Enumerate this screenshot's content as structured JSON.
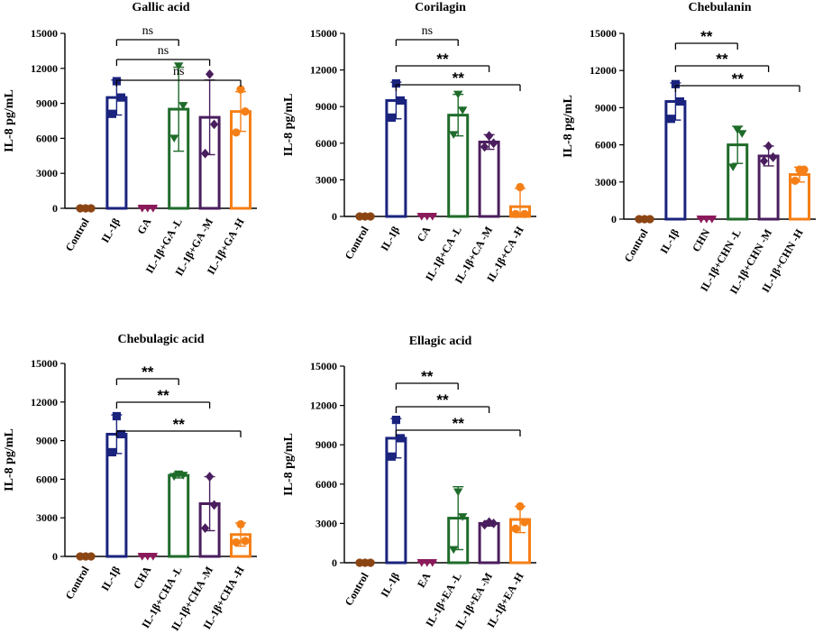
{
  "y_axis_label": "IL-8 pg/mL",
  "colors": [
    "#8B4513",
    "#1A237E",
    "#8B1A5A",
    "#1E6B2A",
    "#4A1E5E",
    "#F57F17"
  ],
  "chart_data": [
    {
      "type": "bar",
      "title": "Gallic acid",
      "categories": [
        "Control",
        "IL-1β",
        "GA",
        "IL-1β+GA -L",
        "IL-1β+GA -M",
        "IL-1β+GA -H"
      ],
      "values": [
        0,
        9500,
        0,
        8500,
        7800,
        8300
      ],
      "errors": [
        0,
        1500,
        0,
        3600,
        3200,
        1700
      ],
      "points": [
        [
          0,
          0,
          0
        ],
        [
          8100,
          9500,
          10900
        ],
        [
          0,
          0,
          0
        ],
        [
          6000,
          8800,
          12200
        ],
        [
          4700,
          7200,
          11500
        ],
        [
          6500,
          8300,
          10200
        ]
      ],
      "yticks": [
        0,
        3000,
        6000,
        9000,
        12000,
        15000
      ],
      "ylim": [
        0,
        15000
      ],
      "brackets": [
        {
          "from": 1,
          "to": 3,
          "label": "ns"
        },
        {
          "from": 1,
          "to": 4,
          "label": "ns"
        },
        {
          "from": 1,
          "to": 5,
          "label": "ns"
        }
      ]
    },
    {
      "type": "bar",
      "title": "Corilagin",
      "categories": [
        "Control",
        "IL-1β",
        "CA",
        "IL-1β+CA -L",
        "IL-1β+CA -M",
        "IL-1β+CA -H"
      ],
      "values": [
        0,
        9500,
        0,
        8300,
        6100,
        800
      ],
      "errors": [
        0,
        1500,
        0,
        1700,
        600,
        1500
      ],
      "points": [
        [
          0,
          0,
          0
        ],
        [
          8100,
          9500,
          10900
        ],
        [
          0,
          0,
          0
        ],
        [
          6700,
          8700,
          10000
        ],
        [
          5700,
          6000,
          6600
        ],
        [
          200,
          200,
          2400
        ]
      ],
      "yticks": [
        0,
        3000,
        6000,
        9000,
        12000,
        15000
      ],
      "ylim": [
        0,
        15000
      ],
      "brackets": [
        {
          "from": 1,
          "to": 3,
          "label": "ns"
        },
        {
          "from": 1,
          "to": 4,
          "label": "**"
        },
        {
          "from": 1,
          "to": 5,
          "label": "**"
        }
      ]
    },
    {
      "type": "bar",
      "title": "Chebulanin",
      "categories": [
        "Control",
        "IL-1β",
        "CHN",
        "IL-1β+CHN -L",
        "IL-1β+CHN -M",
        "IL-1β+CHN -H"
      ],
      "values": [
        0,
        9500,
        0,
        6000,
        5100,
        3600
      ],
      "errors": [
        0,
        1500,
        0,
        1500,
        800,
        600
      ],
      "points": [
        [
          0,
          0,
          0
        ],
        [
          8100,
          9500,
          10900
        ],
        [
          0,
          0,
          0
        ],
        [
          4200,
          6900,
          7200
        ],
        [
          4700,
          5000,
          5900
        ],
        [
          3100,
          4000,
          4000
        ]
      ],
      "yticks": [
        0,
        3000,
        6000,
        9000,
        12000,
        15000
      ],
      "ylim": [
        0,
        15000
      ],
      "brackets": [
        {
          "from": 1,
          "to": 3,
          "label": "**"
        },
        {
          "from": 1,
          "to": 4,
          "label": "**"
        },
        {
          "from": 1,
          "to": 5,
          "label": "**"
        }
      ]
    },
    {
      "type": "bar",
      "title": "Chebulagic acid",
      "categories": [
        "Control",
        "IL-1β",
        "CHA",
        "IL-1β+CHA -L",
        "IL-1β+CHA -M",
        "IL-1β+CHA -H"
      ],
      "values": [
        0,
        9500,
        0,
        6300,
        4100,
        1700
      ],
      "errors": [
        0,
        1500,
        0,
        200,
        2100,
        900
      ],
      "points": [
        [
          0,
          0,
          0
        ],
        [
          8100,
          9500,
          10900
        ],
        [
          0,
          0,
          0
        ],
        [
          6200,
          6300,
          6400
        ],
        [
          2200,
          4000,
          6200
        ],
        [
          1100,
          1200,
          2500
        ]
      ],
      "yticks": [
        0,
        3000,
        6000,
        9000,
        12000,
        15000
      ],
      "ylim": [
        0,
        15000
      ],
      "brackets": [
        {
          "from": 1,
          "to": 3,
          "label": "**"
        },
        {
          "from": 1,
          "to": 4,
          "label": "**"
        },
        {
          "from": 1,
          "to": 5,
          "label": "**"
        }
      ]
    },
    {
      "type": "bar",
      "title": "Ellagic acid",
      "categories": [
        "Control",
        "IL-1β",
        "EA",
        "IL-1β+EA -L",
        "IL-1β+EA -M",
        "IL-1β+EA -H"
      ],
      "values": [
        0,
        9500,
        0,
        3400,
        3000,
        3300
      ],
      "errors": [
        0,
        1500,
        0,
        2400,
        200,
        1000
      ],
      "points": [
        [
          0,
          0,
          0
        ],
        [
          8100,
          9500,
          10900
        ],
        [
          0,
          0,
          0
        ],
        [
          1000,
          3500,
          5400
        ],
        [
          2900,
          3000,
          3100
        ],
        [
          2600,
          3100,
          4300
        ]
      ],
      "yticks": [
        0,
        3000,
        6000,
        9000,
        12000,
        15000
      ],
      "ylim": [
        0,
        15000
      ],
      "brackets": [
        {
          "from": 1,
          "to": 3,
          "label": "**"
        },
        {
          "from": 1,
          "to": 4,
          "label": "**"
        },
        {
          "from": 1,
          "to": 5,
          "label": "**"
        }
      ]
    }
  ]
}
